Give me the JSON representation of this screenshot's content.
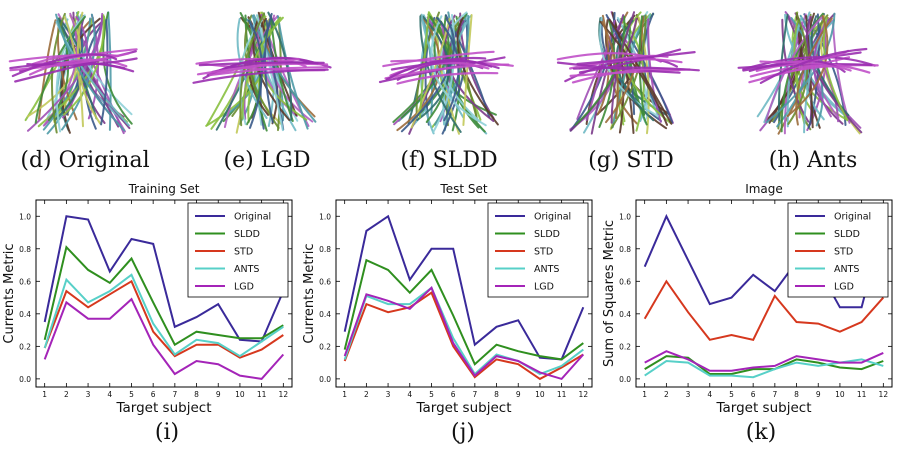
{
  "tract_panels": [
    {
      "label": "(d) Original"
    },
    {
      "label": "(e) LGD"
    },
    {
      "label": "(f) SLDD"
    },
    {
      "label": "(g) STD"
    },
    {
      "label": "(h) Ants"
    }
  ],
  "panel_letters": [
    "(i)",
    "(j)",
    "(k)"
  ],
  "series_colors": {
    "Original": "#3a2a9a",
    "SLDD": "#2f8f1f",
    "STD": "#d6381e",
    "ANTS": "#57d0c8",
    "LGD": "#a424b8"
  },
  "chart_data": [
    {
      "type": "line",
      "title": "Training Set",
      "xlabel": "Target subject",
      "ylabel": "Currents Metric",
      "x": [
        1,
        2,
        3,
        4,
        5,
        6,
        7,
        8,
        9,
        10,
        11,
        12
      ],
      "ylim": [
        -0.05,
        1.1
      ],
      "yticks": [
        "0.0",
        "0.2",
        "0.4",
        "0.6",
        "0.8",
        "1.0"
      ],
      "legend_position": "top-right",
      "series": [
        {
          "name": "Original",
          "values": [
            0.35,
            1.0,
            0.98,
            0.66,
            0.86,
            0.83,
            0.32,
            0.38,
            0.46,
            0.24,
            0.23,
            0.54
          ]
        },
        {
          "name": "SLDD",
          "values": [
            0.24,
            0.81,
            0.67,
            0.59,
            0.74,
            0.47,
            0.21,
            0.29,
            0.27,
            0.25,
            0.25,
            0.33
          ]
        },
        {
          "name": "STD",
          "values": [
            0.19,
            0.54,
            0.44,
            0.52,
            0.6,
            0.29,
            0.14,
            0.21,
            0.21,
            0.13,
            0.18,
            0.27
          ]
        },
        {
          "name": "ANTS",
          "values": [
            0.19,
            0.61,
            0.47,
            0.54,
            0.64,
            0.34,
            0.15,
            0.24,
            0.22,
            0.14,
            0.23,
            0.32
          ]
        },
        {
          "name": "LGD",
          "values": [
            0.12,
            0.47,
            0.37,
            0.37,
            0.49,
            0.21,
            0.03,
            0.11,
            0.09,
            0.02,
            0.0,
            0.15
          ]
        }
      ]
    },
    {
      "type": "line",
      "title": "Test Set",
      "xlabel": "Target subject",
      "ylabel": "Currents Metric",
      "x": [
        1,
        2,
        3,
        4,
        5,
        6,
        7,
        8,
        9,
        10,
        11,
        12
      ],
      "ylim": [
        -0.05,
        1.1
      ],
      "yticks": [
        "0.0",
        "0.2",
        "0.4",
        "0.6",
        "0.8",
        "1.0"
      ],
      "legend_position": "top-right",
      "series": [
        {
          "name": "Original",
          "values": [
            0.29,
            0.91,
            1.0,
            0.61,
            0.8,
            0.8,
            0.21,
            0.32,
            0.36,
            0.13,
            0.12,
            0.44
          ]
        },
        {
          "name": "SLDD",
          "values": [
            0.18,
            0.73,
            0.67,
            0.53,
            0.67,
            0.39,
            0.09,
            0.21,
            0.17,
            0.14,
            0.12,
            0.22
          ]
        },
        {
          "name": "STD",
          "values": [
            0.11,
            0.46,
            0.41,
            0.44,
            0.53,
            0.2,
            0.01,
            0.12,
            0.09,
            0.0,
            0.07,
            0.15
          ]
        },
        {
          "name": "ANTS",
          "values": [
            0.12,
            0.51,
            0.46,
            0.46,
            0.56,
            0.25,
            0.03,
            0.15,
            0.11,
            0.03,
            0.08,
            0.18
          ]
        },
        {
          "name": "LGD",
          "values": [
            0.14,
            0.52,
            0.48,
            0.43,
            0.56,
            0.22,
            0.02,
            0.14,
            0.11,
            0.04,
            0.0,
            0.15
          ]
        }
      ]
    },
    {
      "type": "line",
      "title": "Image",
      "xlabel": "Target subject",
      "ylabel": "Sum of Squares Metric",
      "x": [
        1,
        2,
        3,
        4,
        5,
        6,
        7,
        8,
        9,
        10,
        11,
        12
      ],
      "ylim": [
        -0.05,
        1.1
      ],
      "yticks": [
        "0.0",
        "0.2",
        "0.4",
        "0.6",
        "0.8",
        "1.0"
      ],
      "legend_position": "top-right",
      "series": [
        {
          "name": "Original",
          "values": [
            0.69,
            1.0,
            0.73,
            0.46,
            0.5,
            0.64,
            0.54,
            0.72,
            0.68,
            0.44,
            0.44,
            0.95
          ]
        },
        {
          "name": "SLDD",
          "values": [
            0.06,
            0.14,
            0.13,
            0.03,
            0.03,
            0.06,
            0.06,
            0.12,
            0.1,
            0.07,
            0.06,
            0.11
          ]
        },
        {
          "name": "STD",
          "values": [
            0.37,
            0.6,
            0.41,
            0.24,
            0.27,
            0.24,
            0.51,
            0.35,
            0.34,
            0.29,
            0.35,
            0.5
          ]
        },
        {
          "name": "ANTS",
          "values": [
            0.02,
            0.11,
            0.1,
            0.02,
            0.02,
            0.01,
            0.06,
            0.1,
            0.08,
            0.1,
            0.12,
            0.08
          ]
        },
        {
          "name": "LGD",
          "values": [
            0.1,
            0.17,
            0.12,
            0.05,
            0.05,
            0.07,
            0.08,
            0.14,
            0.12,
            0.1,
            0.1,
            0.16
          ]
        }
      ]
    }
  ]
}
